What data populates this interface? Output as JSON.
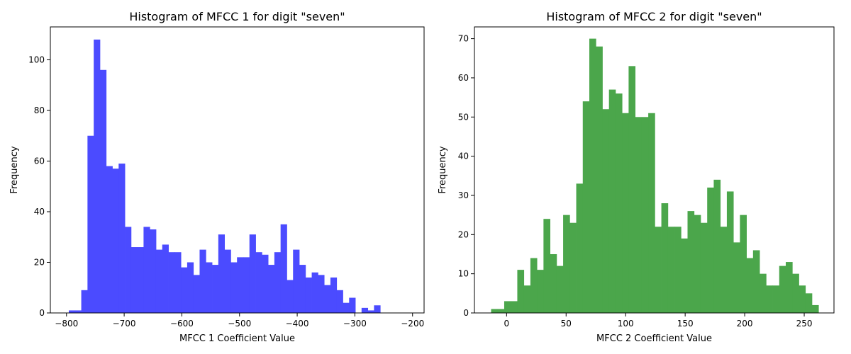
{
  "chart_data": [
    {
      "type": "bar",
      "histogram": true,
      "title": "Histogram of MFCC 1 for digit \"seven\"",
      "xlabel": "MFCC 1 Coefficient Value",
      "ylabel": "Frequency",
      "color": "#4b4bff",
      "xlim": [
        -828,
        -180
      ],
      "ylim": [
        0,
        113
      ],
      "xticks": [
        -800,
        -700,
        -600,
        -500,
        -400,
        -300,
        -200
      ],
      "yticks": [
        0,
        20,
        40,
        60,
        80,
        100
      ],
      "bin_start": -796,
      "bin_width": 10.8,
      "values": [
        1,
        1,
        9,
        70,
        108,
        96,
        58,
        57,
        59,
        34,
        26,
        26,
        34,
        33,
        25,
        27,
        24,
        24,
        18,
        20,
        15,
        25,
        20,
        19,
        31,
        25,
        20,
        22,
        22,
        31,
        24,
        23,
        19,
        24,
        35,
        13,
        25,
        19,
        14,
        16,
        15,
        11,
        14,
        9,
        4,
        6,
        0,
        2,
        1,
        3
      ]
    },
    {
      "type": "bar",
      "histogram": true,
      "title": "Histogram of MFCC 2 for digit \"seven\"",
      "xlabel": "MFCC 2 Coefficient Value",
      "ylabel": "Frequency",
      "color": "#4ba64b",
      "xlim": [
        -27,
        275
      ],
      "ylim": [
        0,
        73
      ],
      "xticks": [
        0,
        50,
        100,
        150,
        200,
        250
      ],
      "yticks": [
        0,
        10,
        20,
        30,
        40,
        50,
        60,
        70
      ],
      "bin_start": -13,
      "bin_width": 5.5,
      "values": [
        1,
        1,
        3,
        3,
        11,
        7,
        14,
        11,
        24,
        15,
        12,
        25,
        23,
        33,
        54,
        70,
        68,
        52,
        57,
        56,
        51,
        63,
        50,
        50,
        51,
        22,
        28,
        22,
        22,
        19,
        26,
        25,
        23,
        32,
        34,
        22,
        31,
        18,
        25,
        14,
        16,
        10,
        7,
        7,
        12,
        13,
        10,
        7,
        5,
        2
      ]
    }
  ]
}
